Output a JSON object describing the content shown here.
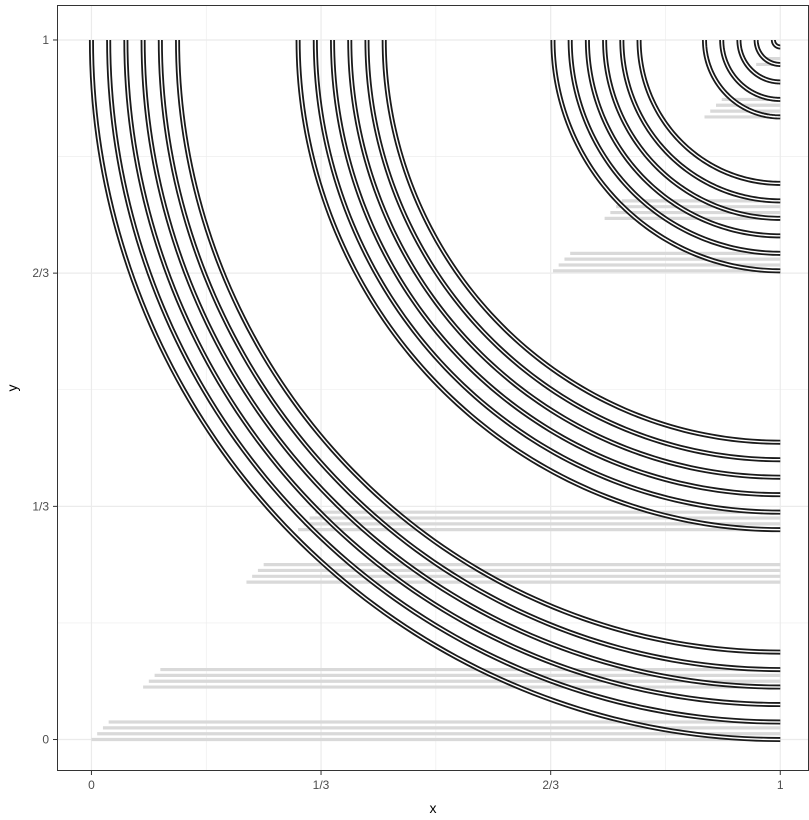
{
  "chart_data": {
    "type": "line",
    "title": "",
    "xlabel": "x",
    "ylabel": "y",
    "xlim": [
      -0.05,
      1.0417
    ],
    "ylim": [
      -0.045,
      1.05
    ],
    "x_ticks": [
      {
        "value": 0,
        "label": "0"
      },
      {
        "value": 0.3333,
        "label": "1/3"
      },
      {
        "value": 0.6667,
        "label": "2/3"
      },
      {
        "value": 1,
        "label": "1"
      }
    ],
    "y_ticks": [
      {
        "value": 0,
        "label": "0"
      },
      {
        "value": 0.3333,
        "label": "1/3"
      },
      {
        "value": 0.6667,
        "label": "2/3"
      },
      {
        "value": 1,
        "label": "1"
      }
    ],
    "grid": true,
    "theme": "bw",
    "background_color": "#ffffff",
    "grid_color": "#ebebeb",
    "curve_color": "#1a1a1a",
    "curve_core_color": "#ffffff",
    "segment_color": "#d9d9d9",
    "curve_radii": [
      1.0,
      0.975,
      0.95,
      0.925,
      0.9,
      0.875,
      0.7,
      0.675,
      0.65,
      0.625,
      0.6,
      0.575,
      0.33,
      0.305,
      0.28,
      0.255,
      0.23,
      0.205,
      0.11,
      0.085,
      0.06,
      0.035,
      0.01
    ],
    "segments": [
      {
        "x_start": 0.0,
        "x_end": 1.0,
        "y": 0.0
      },
      {
        "x_start": 0.0083,
        "x_end": 1.0,
        "y": 0.0083
      },
      {
        "x_start": 0.0167,
        "x_end": 1.0,
        "y": 0.0167
      },
      {
        "x_start": 0.025,
        "x_end": 1.0,
        "y": 0.025
      },
      {
        "x_start": 0.075,
        "x_end": 1.0,
        "y": 0.075
      },
      {
        "x_start": 0.0833,
        "x_end": 1.0,
        "y": 0.0833
      },
      {
        "x_start": 0.0917,
        "x_end": 1.0,
        "y": 0.0917
      },
      {
        "x_start": 0.1,
        "x_end": 1.0,
        "y": 0.1
      },
      {
        "x_start": 0.225,
        "x_end": 1.0,
        "y": 0.225
      },
      {
        "x_start": 0.2333,
        "x_end": 1.0,
        "y": 0.2333
      },
      {
        "x_start": 0.2417,
        "x_end": 1.0,
        "y": 0.2417
      },
      {
        "x_start": 0.25,
        "x_end": 1.0,
        "y": 0.25
      },
      {
        "x_start": 0.3,
        "x_end": 1.0,
        "y": 0.3
      },
      {
        "x_start": 0.3083,
        "x_end": 1.0,
        "y": 0.3083
      },
      {
        "x_start": 0.3167,
        "x_end": 1.0,
        "y": 0.3167
      },
      {
        "x_start": 0.325,
        "x_end": 1.0,
        "y": 0.325
      },
      {
        "x_start": 0.67,
        "x_end": 1.0,
        "y": 0.67
      },
      {
        "x_start": 0.6783,
        "x_end": 1.0,
        "y": 0.6783
      },
      {
        "x_start": 0.6867,
        "x_end": 1.0,
        "y": 0.6867
      },
      {
        "x_start": 0.695,
        "x_end": 1.0,
        "y": 0.695
      },
      {
        "x_start": 0.745,
        "x_end": 1.0,
        "y": 0.745
      },
      {
        "x_start": 0.7533,
        "x_end": 1.0,
        "y": 0.7533
      },
      {
        "x_start": 0.7617,
        "x_end": 1.0,
        "y": 0.7617
      },
      {
        "x_start": 0.77,
        "x_end": 1.0,
        "y": 0.77
      },
      {
        "x_start": 0.89,
        "x_end": 1.0,
        "y": 0.89
      },
      {
        "x_start": 0.8983,
        "x_end": 1.0,
        "y": 0.8983
      },
      {
        "x_start": 0.9067,
        "x_end": 1.0,
        "y": 0.9067
      },
      {
        "x_start": 0.915,
        "x_end": 1.0,
        "y": 0.915
      },
      {
        "x_start": 0.965,
        "x_end": 1.0,
        "y": 0.965
      },
      {
        "x_start": 0.9733,
        "x_end": 1.0,
        "y": 0.9733
      }
    ]
  }
}
